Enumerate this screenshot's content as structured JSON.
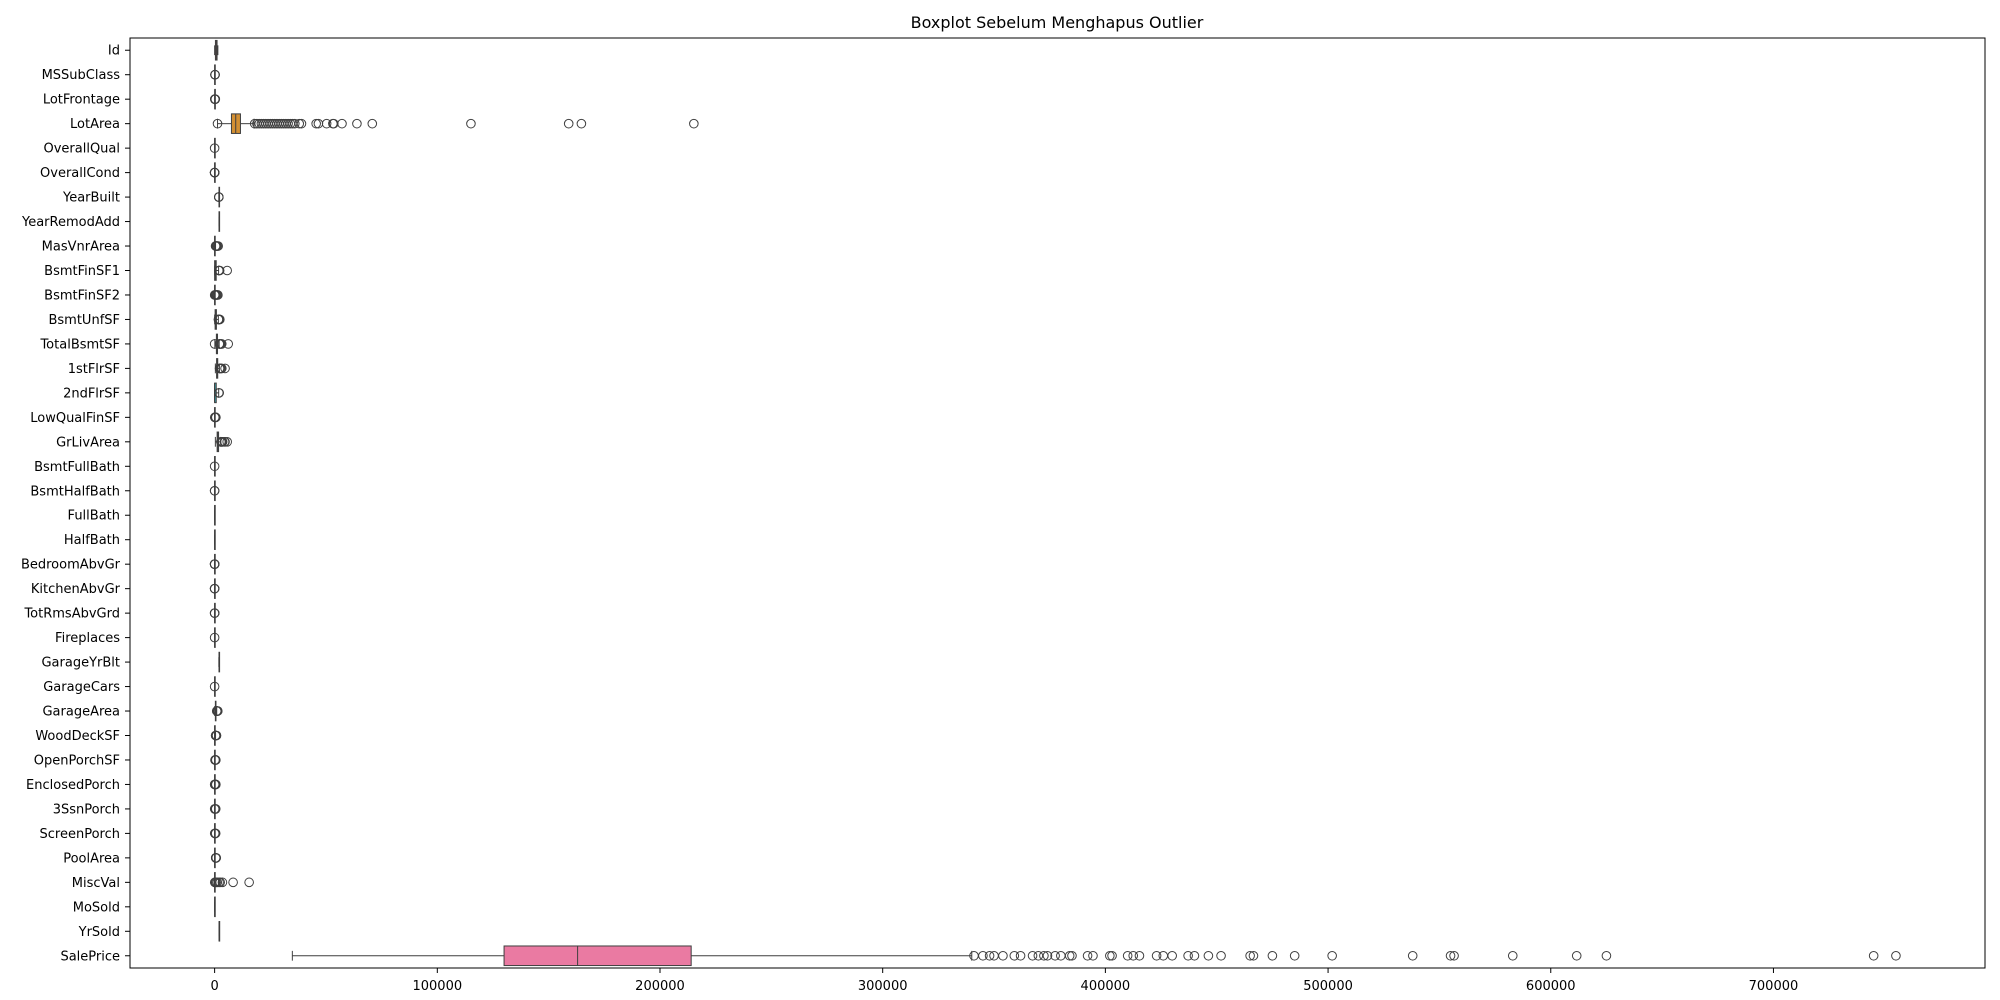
{
  "chart_data": {
    "type": "boxplot",
    "orientation": "horizontal",
    "title": "Boxplot Sebelum Menghapus Outlier",
    "xlabel": "",
    "ylabel": "",
    "xlim": [
      -38000,
      795000
    ],
    "xticks": [
      0,
      100000,
      200000,
      300000,
      400000,
      500000,
      600000,
      700000
    ],
    "xtick_labels": [
      "0",
      "100000",
      "200000",
      "300000",
      "400000",
      "500000",
      "600000",
      "700000"
    ],
    "grid": false,
    "legend": "none",
    "categories": [
      "Id",
      "MSSubClass",
      "LotFrontage",
      "LotArea",
      "OverallQual",
      "OverallCond",
      "YearBuilt",
      "YearRemodAdd",
      "MasVnrArea",
      "BsmtFinSF1",
      "BsmtFinSF2",
      "BsmtUnfSF",
      "TotalBsmtSF",
      "1stFlrSF",
      "2ndFlrSF",
      "LowQualFinSF",
      "GrLivArea",
      "BsmtFullBath",
      "BsmtHalfBath",
      "FullBath",
      "HalfBath",
      "BedroomAbvGr",
      "KitchenAbvGr",
      "TotRmsAbvGrd",
      "Fireplaces",
      "GarageYrBlt",
      "GarageCars",
      "GarageArea",
      "WoodDeckSF",
      "OpenPorchSF",
      "EnclosedPorch",
      "3SsnPorch",
      "ScreenPorch",
      "PoolArea",
      "MiscVal",
      "MoSold",
      "YrSold",
      "SalePrice"
    ],
    "series": [
      {
        "whisker_low": 1,
        "q1": 366,
        "median": 730,
        "q3": 1095,
        "whisker_high": 1460,
        "outliers": [],
        "color": "#f8766d"
      },
      {
        "whisker_low": 20,
        "q1": 20,
        "median": 50,
        "q3": 70,
        "whisker_high": 145,
        "outliers": [
          160,
          180,
          190
        ],
        "color": "#ef7f4c"
      },
      {
        "whisker_low": 21,
        "q1": 60,
        "median": 69,
        "q3": 79,
        "whisker_high": 107,
        "outliers": [
          110,
          130,
          150,
          182,
          313
        ],
        "color": "#e48833"
      },
      {
        "whisker_low": 1300,
        "q1": 7554,
        "median": 9478,
        "q3": 11602,
        "whisker_high": 17671,
        "outliers": [
          1300,
          18000,
          19000,
          20000,
          21000,
          22000,
          23000,
          24000,
          25000,
          26000,
          27000,
          28000,
          29000,
          30000,
          31000,
          32000,
          33000,
          34000,
          35000,
          36000,
          38000,
          39000,
          45600,
          46600,
          50300,
          53100,
          53500,
          57200,
          63900,
          70800,
          115100,
          159000,
          164700,
          215200
        ],
        "color": "#d38f32"
      },
      {
        "whisker_low": 2,
        "q1": 5,
        "median": 6,
        "q3": 7,
        "whisker_high": 10,
        "outliers": [
          1
        ],
        "color": "#c2962f"
      },
      {
        "whisker_low": 3.5,
        "q1": 5,
        "median": 5,
        "q3": 6,
        "whisker_high": 7.5,
        "outliers": [
          1,
          2,
          3,
          8,
          9
        ],
        "color": "#b19b2e"
      },
      {
        "whisker_low": 1885,
        "q1": 1954,
        "median": 1973,
        "q3": 2000,
        "whisker_high": 2010,
        "outliers": [
          1872,
          1875,
          1880
        ],
        "color": "#9fa030"
      },
      {
        "whisker_low": 1950,
        "q1": 1967,
        "median": 1994,
        "q3": 2004,
        "whisker_high": 2010,
        "outliers": [],
        "color": "#8ca533"
      },
      {
        "whisker_low": 0,
        "q1": 0,
        "median": 0,
        "q3": 166,
        "whisker_high": 415,
        "outliers": [
          420,
          600,
          800,
          1000,
          1200,
          1600
        ],
        "color": "#74aa38"
      },
      {
        "whisker_low": 0,
        "q1": 0,
        "median": 384,
        "q3": 712,
        "whisker_high": 1780,
        "outliers": [
          1880,
          2096,
          2260,
          5644
        ],
        "color": "#53ae4a"
      },
      {
        "whisker_low": 0,
        "q1": 0,
        "median": 0,
        "q3": 0,
        "whisker_high": 0,
        "outliers": [
          28,
          100,
          300,
          500,
          800,
          1127,
          1474
        ],
        "color": "#38b16e"
      },
      {
        "whisker_low": 0,
        "q1": 223,
        "median": 478,
        "q3": 808,
        "whisker_high": 1680,
        "outliers": [
          1700,
          1800,
          1900,
          2000,
          2121,
          2336
        ],
        "color": "#36b38a"
      },
      {
        "whisker_low": 105,
        "q1": 796,
        "median": 992,
        "q3": 1298,
        "whisker_high": 2046,
        "outliers": [
          0,
          2100,
          2400,
          2600,
          3000,
          3206,
          6110
        ],
        "color": "#36b5a0"
      },
      {
        "whisker_low": 334,
        "q1": 882,
        "median": 1087,
        "q3": 1391,
        "whisker_high": 2155,
        "outliers": [
          2200,
          2400,
          2600,
          3000,
          3228,
          4692
        ],
        "color": "#38b5b2"
      },
      {
        "whisker_low": 0,
        "q1": 0,
        "median": 0,
        "q3": 728,
        "whisker_high": 1818,
        "outliers": [
          1872,
          2065
        ],
        "color": "#3bb5c4"
      },
      {
        "whisker_low": 0,
        "q1": 0,
        "median": 0,
        "q3": 0,
        "whisker_high": 0,
        "outliers": [
          53,
          200,
          400,
          572
        ],
        "color": "#3eb3d6"
      },
      {
        "whisker_low": 334,
        "q1": 1130,
        "median": 1464,
        "q3": 1777,
        "whisker_high": 2730,
        "outliers": [
          2800,
          3000,
          3200,
          3400,
          3608,
          4476,
          4676,
          5642
        ],
        "color": "#45b0e8"
      },
      {
        "whisker_low": 0,
        "q1": 0,
        "median": 0,
        "q3": 1,
        "whisker_high": 2,
        "outliers": [
          3
        ],
        "color": "#5aa9f0"
      },
      {
        "whisker_low": 0,
        "q1": 0,
        "median": 0,
        "q3": 0,
        "whisker_high": 0,
        "outliers": [
          1,
          2
        ],
        "color": "#759ff4"
      },
      {
        "whisker_low": 0,
        "q1": 1,
        "median": 2,
        "q3": 2,
        "whisker_high": 3,
        "outliers": [],
        "color": "#8e95f5"
      },
      {
        "whisker_low": 0,
        "q1": 0,
        "median": 0,
        "q3": 1,
        "whisker_high": 2,
        "outliers": [],
        "color": "#a48bf5"
      },
      {
        "whisker_low": 1,
        "q1": 2,
        "median": 3,
        "q3": 3,
        "whisker_high": 4,
        "outliers": [
          0,
          5,
          6,
          8
        ],
        "color": "#b881f3"
      },
      {
        "whisker_low": 1,
        "q1": 1,
        "median": 1,
        "q3": 1,
        "whisker_high": 1,
        "outliers": [
          0,
          2,
          3
        ],
        "color": "#ca78ee"
      },
      {
        "whisker_low": 2,
        "q1": 5,
        "median": 6,
        "q3": 7,
        "whisker_high": 10,
        "outliers": [
          11,
          12,
          14
        ],
        "color": "#da70e5"
      },
      {
        "whisker_low": 0,
        "q1": 0,
        "median": 1,
        "q3": 1,
        "whisker_high": 2,
        "outliers": [
          3
        ],
        "color": "#e76bda"
      },
      {
        "whisker_low": 1900,
        "q1": 1961,
        "median": 1980,
        "q3": 2002,
        "whisker_high": 2010,
        "outliers": [],
        "color": "#f069cb"
      },
      {
        "whisker_low": 0,
        "q1": 1,
        "median": 2,
        "q3": 2,
        "whisker_high": 3,
        "outliers": [
          4
        ],
        "color": "#f56bb9"
      },
      {
        "whisker_low": 0,
        "q1": 334,
        "median": 480,
        "q3": 576,
        "whisker_high": 938,
        "outliers": [
          954,
          1000,
          1100,
          1248,
          1356,
          1418
        ],
        "color": "#f76fa7"
      },
      {
        "whisker_low": 0,
        "q1": 0,
        "median": 0,
        "q3": 168,
        "whisker_high": 420,
        "outliers": [
          428,
          500,
          600,
          736,
          857
        ],
        "color": "#f77496"
      },
      {
        "whisker_low": 0,
        "q1": 0,
        "median": 25,
        "q3": 68,
        "whisker_high": 170,
        "outliers": [
          172,
          250,
          350,
          450,
          547
        ],
        "color": "#f67a86"
      },
      {
        "whisker_low": 0,
        "q1": 0,
        "median": 0,
        "q3": 0,
        "whisker_high": 0,
        "outliers": [
          19,
          100,
          200,
          300,
          386,
          552
        ],
        "color": "#f4807a"
      },
      {
        "whisker_low": 0,
        "q1": 0,
        "median": 0,
        "q3": 0,
        "whisker_high": 0,
        "outliers": [
          23,
          150,
          320,
          508
        ],
        "color": "#f08670"
      },
      {
        "whisker_low": 0,
        "q1": 0,
        "median": 0,
        "q3": 0,
        "whisker_high": 0,
        "outliers": [
          40,
          150,
          300,
          480
        ],
        "color": "#ea8c66"
      },
      {
        "whisker_low": 0,
        "q1": 0,
        "median": 0,
        "q3": 0,
        "whisker_high": 0,
        "outliers": [
          480,
          512,
          555,
          576,
          648,
          738
        ],
        "color": "#e4925e"
      },
      {
        "whisker_low": 0,
        "q1": 0,
        "median": 0,
        "q3": 0,
        "whisker_high": 0,
        "outliers": [
          54,
          400,
          700,
          1200,
          2000,
          2500,
          3500,
          8300,
          15500
        ],
        "color": "#de9858"
      },
      {
        "whisker_low": 1,
        "q1": 5,
        "median": 6,
        "q3": 8,
        "whisker_high": 12,
        "outliers": [],
        "color": "#d89e55"
      },
      {
        "whisker_low": 2006,
        "q1": 2007,
        "median": 2008,
        "q3": 2009,
        "whisker_high": 2010,
        "outliers": [],
        "color": "#d2a454"
      },
      {
        "whisker_low": 34900,
        "q1": 129975,
        "median": 163000,
        "q3": 214000,
        "whisker_high": 340000,
        "outliers": [
          341000,
          345000,
          348000,
          350000,
          354000,
          359100,
          361919,
          367294,
          369900,
          372402,
          374000,
          377426,
          380000,
          383970,
          385000,
          392000,
          394432,
          402000,
          403000,
          410000,
          412500,
          415298,
          423000,
          426000,
          430000,
          437154,
          440000,
          446261,
          451950,
          465000,
          466500,
          475000,
          485000,
          501837,
          538000,
          555000,
          556581,
          582933,
          611657,
          625000,
          745000,
          755000
        ],
        "color": "#ea7aa2"
      }
    ]
  }
}
